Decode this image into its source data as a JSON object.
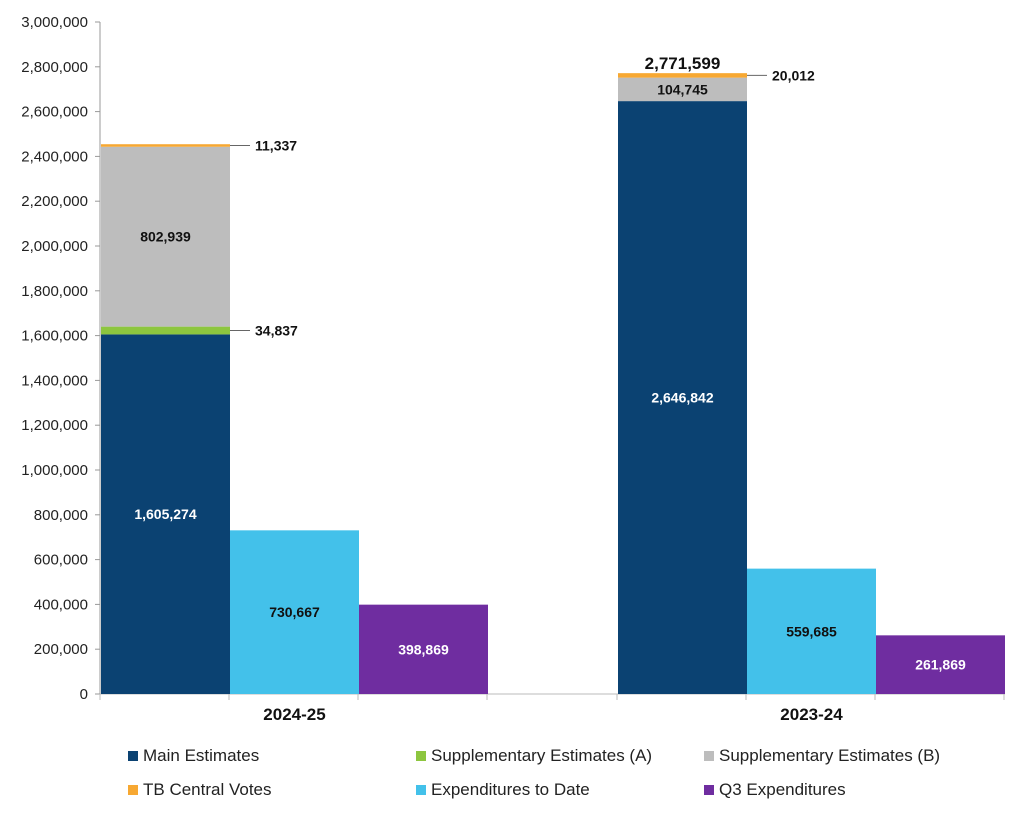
{
  "chart_data": {
    "type": "bar",
    "stacked_first_bar": true,
    "categories": [
      "2024-25",
      "2023-24"
    ],
    "ylim": [
      0,
      3000000
    ],
    "yticks": [
      "0",
      "200,000",
      "400,000",
      "600,000",
      "800,000",
      "1,000,000",
      "1,200,000",
      "1,400,000",
      "1,600,000",
      "1,800,000",
      "2,000,000",
      "2,200,000",
      "2,400,000",
      "2,600,000",
      "2,800,000",
      "3,000,000"
    ],
    "grid": false,
    "legend_position": "bottom",
    "series": [
      {
        "name": "Main Estimates",
        "color": "#0b4272",
        "stack": "estimates",
        "values": [
          1605274,
          2646842
        ],
        "labels": [
          "1,605,274",
          "2,646,842"
        ]
      },
      {
        "name": "Supplementary Estimates (A)",
        "color": "#8dc63f",
        "stack": "estimates",
        "values": [
          34837,
          0
        ],
        "labels": [
          "34,837",
          ""
        ]
      },
      {
        "name": "Supplementary Estimates (B)",
        "color": "#bdbdbd",
        "stack": "estimates",
        "values": [
          802939,
          104745
        ],
        "labels": [
          "802,939",
          "104,745"
        ]
      },
      {
        "name": "TB Central Votes",
        "color": "#f7a832",
        "stack": "estimates",
        "values": [
          11337,
          20012
        ],
        "labels": [
          "11,337",
          "20,012"
        ]
      },
      {
        "name": "Expenditures to Date",
        "color": "#43c1ea",
        "stack": "expenditures",
        "values": [
          730667,
          559685
        ],
        "labels": [
          "730,667",
          "559,685"
        ]
      },
      {
        "name": "Q3 Expenditures",
        "color": "#6f2da0",
        "stack": "q3",
        "values": [
          398869,
          261869
        ],
        "labels": [
          "398,869",
          "261,869"
        ]
      }
    ],
    "totals": [
      "",
      "2,771,599"
    ]
  }
}
